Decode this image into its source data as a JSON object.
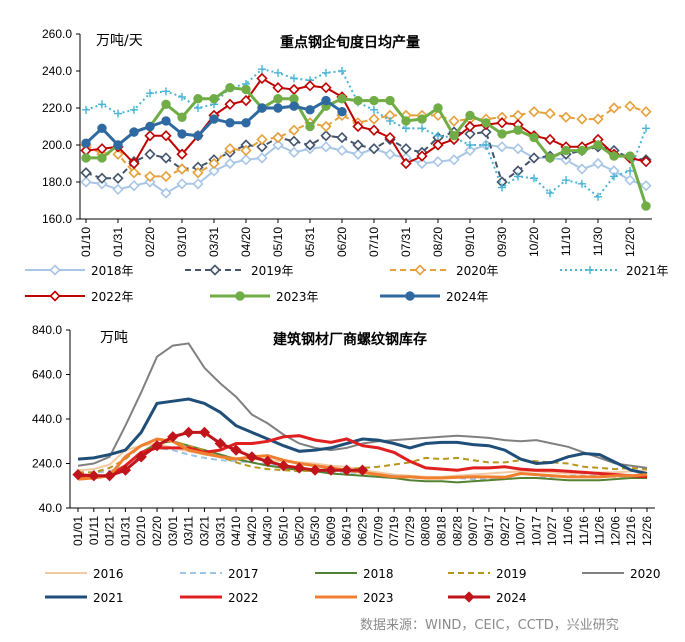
{
  "source_note": "数据来源：WIND，CEIC，CCTD，兴业研究",
  "chart_data": [
    {
      "type": "line",
      "title": "重点钢企旬度日均产量",
      "unit": "万吨/天",
      "ylim": [
        160,
        260
      ],
      "yticks": [
        "260.0",
        "240.0",
        "220.0",
        "200.0",
        "180.0",
        "160.0"
      ],
      "ytick_values": [
        260,
        240,
        220,
        200,
        180,
        160
      ],
      "xtick_labels": [
        "01/10",
        "01/31",
        "02/20",
        "03/10",
        "03/31",
        "04/20",
        "05/10",
        "05/31",
        "06/20",
        "07/10",
        "07/31",
        "08/20",
        "09/10",
        "09/30",
        "10/20",
        "11/10",
        "11/30",
        "12/20"
      ],
      "grid": false,
      "legend_position": "bottom",
      "series": [
        {
          "name": "2018年",
          "color": "#a9c6e6",
          "dash": "solid",
          "marker": "diamond-open",
          "values": [
            180,
            179,
            176,
            178,
            180,
            174,
            179,
            179,
            186,
            190,
            192,
            193,
            200,
            196,
            198,
            199,
            197,
            195,
            198,
            195,
            193,
            190,
            191,
            192,
            197,
            200,
            199,
            198,
            193,
            193,
            192,
            187,
            190,
            186,
            181,
            178
          ]
        },
        {
          "name": "2019年",
          "color": "#44546a",
          "dash": "dash",
          "marker": "diamond-open",
          "values": [
            185,
            182,
            182,
            191,
            195,
            193,
            187,
            188,
            192,
            196,
            200,
            199,
            204,
            202,
            200,
            205,
            204,
            200,
            198,
            203,
            198,
            196,
            204,
            207,
            206,
            207,
            180,
            186,
            193,
            194,
            195,
            197,
            199,
            197,
            193,
            192
          ]
        },
        {
          "name": "2020年",
          "color": "#e6a13b",
          "dash": "dash",
          "marker": "diamond-open",
          "values": [
            200,
            195,
            195,
            185,
            183,
            183,
            187,
            185,
            190,
            198,
            197,
            203,
            204,
            208,
            212,
            210,
            216,
            212,
            214,
            216,
            216,
            216,
            216,
            213,
            214,
            214,
            215,
            216,
            218,
            217,
            215,
            214,
            214,
            220,
            221,
            218
          ]
        },
        {
          "name": "2021年",
          "color": "#4bb3d6",
          "dash": "dot",
          "marker": "plus",
          "values": [
            219,
            222,
            217,
            219,
            228,
            229,
            226,
            220,
            222,
            231,
            233,
            241,
            239,
            236,
            235,
            239,
            240,
            223,
            219,
            213,
            209,
            209,
            205,
            204,
            200,
            200,
            177,
            183,
            182,
            174,
            181,
            179,
            172,
            183,
            186,
            209
          ]
        },
        {
          "name": "2022年",
          "color": "#c00000",
          "dash": "solid",
          "marker": "diamond-open",
          "values": [
            197,
            198,
            199,
            190,
            205,
            205,
            195,
            205,
            216,
            222,
            224,
            236,
            231,
            230,
            232,
            231,
            226,
            210,
            208,
            204,
            190,
            194,
            200,
            203,
            210,
            211,
            212,
            211,
            205,
            203,
            199,
            199,
            203,
            195,
            193,
            191
          ]
        },
        {
          "name": "2023年",
          "color": "#70ad47",
          "dash": "solid",
          "marker": "circle",
          "values": [
            193,
            193,
            200,
            207,
            210,
            222,
            215,
            225,
            225,
            231,
            230,
            220,
            225,
            225,
            210,
            221,
            225,
            224,
            224,
            224,
            213,
            214,
            220,
            205,
            216,
            212,
            206,
            208,
            204,
            193,
            197,
            197,
            200,
            194,
            194,
            167
          ]
        },
        {
          "name": "2024年",
          "color": "#2e6aa1",
          "dash": "solid",
          "marker": "circle",
          "values": [
            201,
            209,
            200,
            207,
            210,
            213,
            206,
            205,
            214,
            212,
            212,
            220,
            220,
            221,
            219,
            224,
            218
          ]
        }
      ]
    },
    {
      "type": "line",
      "title": "建筑钢材厂商螺纹钢库存",
      "unit": "万吨",
      "ylim": [
        40,
        840
      ],
      "yticks": [
        "840.0",
        "640.0",
        "440.0",
        "240.0",
        "40.0"
      ],
      "ytick_values": [
        840,
        640,
        440,
        240,
        40
      ],
      "xtick_labels": [
        "01/01",
        "01/11",
        "01/21",
        "01/31",
        "02/10",
        "02/20",
        "03/01",
        "03/11",
        "03/21",
        "03/31",
        "04/10",
        "04/20",
        "04/30",
        "05/10",
        "05/20",
        "05/30",
        "06/09",
        "06/19",
        "06/29",
        "07/09",
        "07/19",
        "07/29",
        "08/08",
        "08/18",
        "08/28",
        "09/07",
        "09/17",
        "09/27",
        "10/07",
        "10/17",
        "10/27",
        "11/06",
        "11/16",
        "11/26",
        "12/06",
        "12/16",
        "12/26"
      ],
      "grid": false,
      "legend_position": "bottom",
      "series": [
        {
          "name": "2016",
          "color": "#f2c9a0",
          "dash": "solid",
          "width": 2,
          "values": [
            210,
            215,
            235,
            300,
            320,
            330,
            310,
            295,
            280,
            270,
            265,
            260,
            255,
            250,
            245,
            240,
            230,
            225,
            210,
            200,
            190,
            185,
            180,
            180,
            185,
            190,
            195,
            200,
            205,
            205,
            200,
            195,
            195,
            200,
            200,
            205,
            210
          ]
        },
        {
          "name": "2017",
          "color": "#9dc3e6",
          "dash": "dash",
          "width": 2,
          "values": [
            200,
            200,
            205,
            230,
            280,
            310,
            300,
            280,
            265,
            255,
            250,
            245,
            235,
            225,
            215,
            210,
            205,
            200,
            195,
            190,
            185,
            180,
            175,
            175,
            175,
            170,
            170,
            170,
            175,
            175,
            180,
            185,
            185,
            185,
            180,
            180,
            180
          ]
        },
        {
          "name": "2018",
          "color": "#548235",
          "dash": "solid",
          "width": 2,
          "values": [
            180,
            180,
            190,
            230,
            290,
            330,
            340,
            320,
            300,
            280,
            260,
            245,
            230,
            220,
            210,
            205,
            195,
            190,
            185,
            180,
            175,
            165,
            160,
            160,
            155,
            160,
            165,
            170,
            175,
            175,
            170,
            165,
            165,
            165,
            170,
            175,
            175
          ]
        },
        {
          "name": "2019",
          "color": "#b8961e",
          "dash": "dash",
          "width": 2,
          "values": [
            200,
            200,
            220,
            260,
            320,
            350,
            340,
            320,
            300,
            270,
            245,
            225,
            215,
            210,
            205,
            210,
            215,
            215,
            220,
            225,
            235,
            245,
            265,
            260,
            265,
            255,
            245,
            245,
            255,
            250,
            245,
            240,
            225,
            220,
            215,
            220,
            215
          ]
        },
        {
          "name": "2020",
          "color": "#808080",
          "dash": "solid",
          "width": 2,
          "values": [
            230,
            240,
            270,
            410,
            560,
            720,
            770,
            780,
            670,
            600,
            540,
            460,
            420,
            370,
            330,
            310,
            300,
            310,
            330,
            340,
            345,
            350,
            355,
            360,
            365,
            360,
            355,
            345,
            340,
            345,
            330,
            315,
            290,
            265,
            240,
            230,
            220
          ]
        },
        {
          "name": "2021",
          "color": "#1f4e79",
          "dash": "solid",
          "width": 3,
          "values": [
            260,
            265,
            280,
            300,
            380,
            510,
            520,
            530,
            510,
            470,
            410,
            380,
            350,
            320,
            295,
            300,
            310,
            330,
            350,
            345,
            330,
            310,
            330,
            335,
            335,
            325,
            320,
            300,
            260,
            240,
            245,
            270,
            285,
            280,
            245,
            210,
            195
          ]
        },
        {
          "name": "2022",
          "color": "#e02020",
          "dash": "solid",
          "width": 3,
          "values": [
            180,
            180,
            185,
            230,
            290,
            310,
            310,
            310,
            290,
            300,
            330,
            330,
            340,
            360,
            365,
            345,
            335,
            350,
            320,
            310,
            290,
            250,
            220,
            215,
            210,
            220,
            220,
            225,
            215,
            210,
            210,
            205,
            200,
            195,
            190,
            185,
            180
          ]
        },
        {
          "name": "2023",
          "color": "#f08030",
          "dash": "solid",
          "width": 3,
          "values": [
            170,
            175,
            185,
            270,
            320,
            350,
            340,
            300,
            285,
            270,
            260,
            270,
            275,
            255,
            240,
            230,
            220,
            210,
            200,
            190,
            180,
            180,
            175,
            175,
            178,
            180,
            180,
            178,
            195,
            190,
            185,
            180,
            180,
            180,
            185,
            185,
            190
          ]
        },
        {
          "name": "2024",
          "color": "#c0151b",
          "dash": "solid",
          "width": 3,
          "marker": "diamond",
          "values": [
            190,
            185,
            185,
            210,
            270,
            320,
            360,
            380,
            380,
            330,
            300,
            270,
            250,
            230,
            220,
            210,
            210,
            210,
            210
          ]
        }
      ]
    }
  ]
}
